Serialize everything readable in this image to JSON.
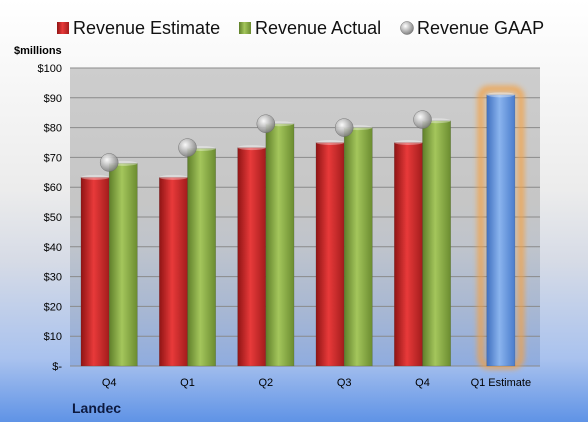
{
  "chart_data": {
    "type": "bar",
    "company": "Landec",
    "unit_label": "$millions",
    "categories": [
      "Q4",
      "Q1",
      "Q2",
      "Q3",
      "Q4",
      "Q1 Estimate"
    ],
    "series": [
      {
        "name": "Revenue Estimate",
        "kind": "bar",
        "color": "#d42a2a",
        "values": [
          63.3,
          63.3,
          73.3,
          75.0,
          75.0,
          null
        ]
      },
      {
        "name": "Revenue Actual",
        "kind": "bar",
        "color": "#8fb44a",
        "values": [
          68.0,
          73.0,
          81.3,
          80.0,
          82.3,
          null
        ]
      },
      {
        "name": "Revenue GAAP",
        "kind": "marker",
        "color": "#b8b8b8",
        "values": [
          68.3,
          73.3,
          81.3,
          80.0,
          82.7,
          null
        ]
      },
      {
        "name": "",
        "kind": "bar",
        "color": "#6d9de0",
        "values": [
          null,
          null,
          null,
          null,
          null,
          91.0
        ]
      }
    ],
    "ylim": [
      0,
      100
    ],
    "yticks": [
      0,
      10,
      20,
      30,
      40,
      50,
      60,
      70,
      80,
      90,
      100
    ],
    "ytick_labels": [
      "$-",
      "$10",
      "$20",
      "$30",
      "$40",
      "$50",
      "$60",
      "$70",
      "$80",
      "$90",
      "$100"
    ],
    "highlight_color": "#f5a040",
    "legend_position": "top",
    "grid": true
  }
}
